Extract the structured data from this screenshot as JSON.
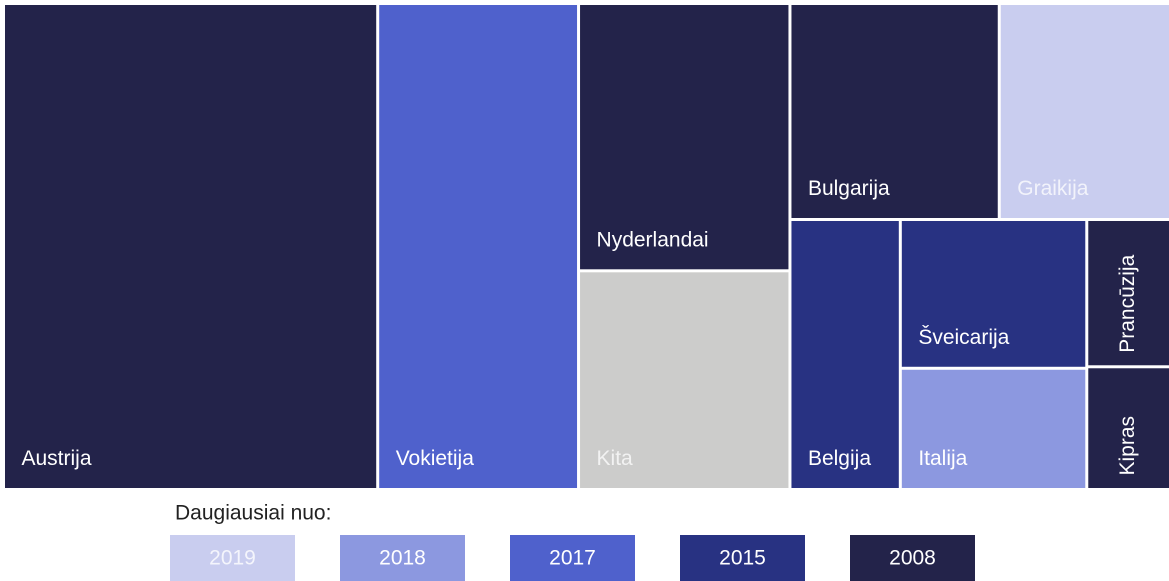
{
  "chart_data": {
    "type": "treemap",
    "items": [
      {
        "name": "Austrija",
        "value": 177,
        "color": "#23234a"
      },
      {
        "name": "Vokietija",
        "value": 95,
        "color": "#4f61cc"
      },
      {
        "name": "Nyderlandai",
        "value": 55,
        "color": "#23234a"
      },
      {
        "name": "Kita",
        "value": 45,
        "color": "#cccccb"
      },
      {
        "name": "Bulgarija",
        "value": 44,
        "color": "#23234a"
      },
      {
        "name": "Graikija",
        "value": 36,
        "color": "#c9cdef"
      },
      {
        "name": "Belgija",
        "value": 29,
        "color": "#283282"
      },
      {
        "name": "Šveicarija",
        "value": 27,
        "color": "#283282"
      },
      {
        "name": "Italija",
        "value": 22,
        "color": "#8c98e0"
      },
      {
        "name": "Prancūzija",
        "value": 12,
        "color": "#23234a"
      },
      {
        "name": "Kipras",
        "value": 10,
        "color": "#23234a"
      }
    ],
    "legend_title": "Daugiausiai nuo:",
    "legend": [
      {
        "label": 2019,
        "color": "#c9cdef"
      },
      {
        "label": 2018,
        "color": "#8c98e0"
      },
      {
        "label": 2017,
        "color": "#4f61cc"
      },
      {
        "label": 2015,
        "color": "#283282"
      },
      {
        "label": 2008,
        "color": "#23234a"
      }
    ]
  }
}
